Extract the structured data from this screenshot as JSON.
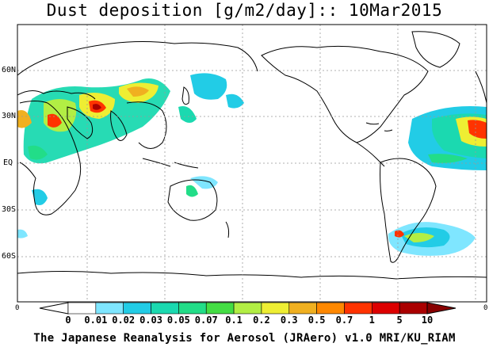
{
  "title": "Dust deposition [g/m2/day]:: 10Mar2015",
  "footer": "The Japanese Reanalysis for Aerosol (JRAero) v1.0 MRI/KU_RIAM",
  "lat_labels": [
    "60N",
    "30N",
    "EQ",
    "30S",
    "60S"
  ],
  "map_bottom_left_label": "0",
  "map_bottom_right_label": "0",
  "colorbar": {
    "tick_labels": [
      "0",
      "0.01",
      "0.02",
      "0.03",
      "0.05",
      "0.07",
      "0.1",
      "0.2",
      "0.3",
      "0.5",
      "0.7",
      "1",
      "5",
      "10"
    ],
    "colors": [
      "#ffffff",
      "#ffffff",
      "#7fe6ff",
      "#22cce6",
      "#1bd9b0",
      "#22dd88",
      "#44dd44",
      "#b2ee44",
      "#eeee33",
      "#f0b020",
      "#ff8800",
      "#ff3300",
      "#dd0000",
      "#aa0000",
      "#880000"
    ]
  }
}
